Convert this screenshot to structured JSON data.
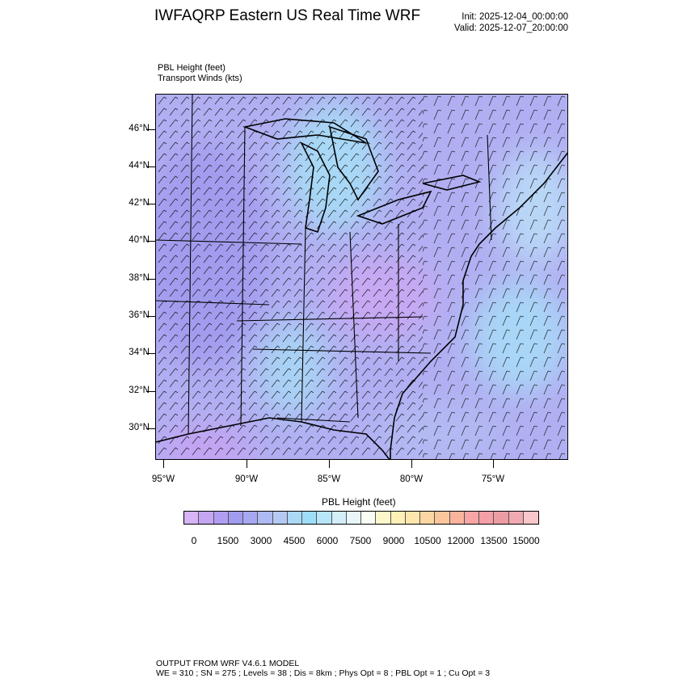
{
  "header": {
    "title": "IWFAQRP Eastern US Real Time WRF",
    "init": "Init: 2025-12-04_00:00:00",
    "valid": "Valid: 2025-12-07_20:00:00"
  },
  "fields": {
    "line1": "PBL Height   (feet)",
    "line2": "Transport Winds   (kts)"
  },
  "axes": {
    "lat_labels": [
      "46°N",
      "44°N",
      "42°N",
      "40°N",
      "38°N",
      "36°N",
      "34°N",
      "32°N",
      "30°N"
    ],
    "lon_labels": [
      "95°W",
      "90°W",
      "85°W",
      "80°W",
      "75°W"
    ]
  },
  "colorbar": {
    "title": "PBL Height  (feet)",
    "labels": [
      "0",
      "1500",
      "3000",
      "4500",
      "6000",
      "7500",
      "9000",
      "10500",
      "12000",
      "13500",
      "15000"
    ],
    "colors": [
      "#d6b4f5",
      "#c4a6f3",
      "#b09ef2",
      "#a29bef",
      "#a6a8f1",
      "#aebbf3",
      "#b4caf4",
      "#acd8f6",
      "#9edef8",
      "#b7e6f8",
      "#d3eef9",
      "#e8f6fa",
      "#fafdf3",
      "#fdf8cc",
      "#fef0b7",
      "#fee6ac",
      "#fdd7a3",
      "#fcc69d",
      "#fbb49c",
      "#f9a5a5",
      "#f59fa6",
      "#ec9da3",
      "#f1a9b2",
      "#f9c6cb"
    ]
  },
  "footer": {
    "line1": "OUTPUT FROM WRF V4.6.1 MODEL",
    "line2": "WE = 310 ; SN = 275 ; Levels = 38 ; Dis = 8km ; Phys Opt = 8 ; PBL Opt = 1 ; Cu Opt = 3"
  }
}
